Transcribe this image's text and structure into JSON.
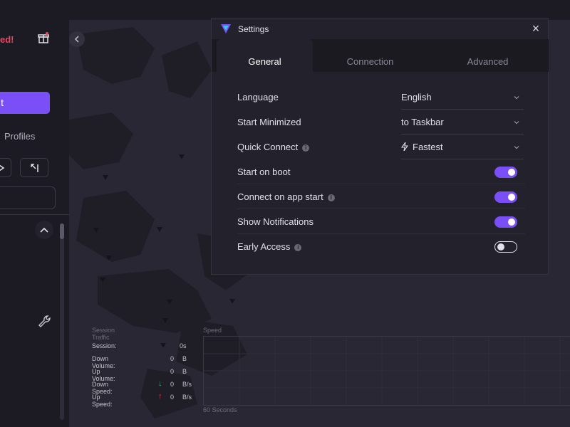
{
  "left_panel": {
    "status": "ed!",
    "connect_label": "t",
    "profiles_label": "Profiles",
    "icons": [
      "gift-icon",
      "skip-icon",
      "wrench-icon",
      "chevron-up-icon"
    ]
  },
  "settings": {
    "title": "Settings",
    "close_icon": "close-icon",
    "tabs": [
      {
        "label": "General",
        "active": true
      },
      {
        "label": "Connection",
        "active": false
      },
      {
        "label": "Advanced",
        "active": false
      }
    ],
    "rows": {
      "language": {
        "label": "Language",
        "value": "English"
      },
      "start_minimized": {
        "label": "Start Minimized",
        "value": "to Taskbar"
      },
      "quick_connect": {
        "label": "Quick Connect",
        "value": "Fastest",
        "info": true
      },
      "start_on_boot": {
        "label": "Start on boot",
        "enabled": true
      },
      "connect_on_app_start": {
        "label": "Connect on app start",
        "enabled": true,
        "info": true
      },
      "show_notifications": {
        "label": "Show Notifications",
        "enabled": true
      },
      "early_access": {
        "label": "Early Access",
        "enabled": false,
        "info": true
      }
    }
  },
  "traffic": {
    "title": "Session Traffic",
    "session": {
      "label": "Session:",
      "value": "0s"
    },
    "down_volume": {
      "label": "Down Volume:",
      "value": "0",
      "unit": "B"
    },
    "up_volume": {
      "label": "Up Volume:",
      "value": "0",
      "unit": "B"
    },
    "down_speed": {
      "label": "Down Speed:",
      "value": "0",
      "unit": "B/s"
    },
    "up_speed": {
      "label": "Up Speed:",
      "value": "0",
      "unit": "B/s"
    }
  },
  "speed_chart": {
    "title": "Speed",
    "footer": "60 Seconds"
  },
  "colors": {
    "accent": "#7b4ff7",
    "alert": "#ef4360",
    "down_arrow": "#2ec27e",
    "up_arrow": "#e0384f"
  }
}
